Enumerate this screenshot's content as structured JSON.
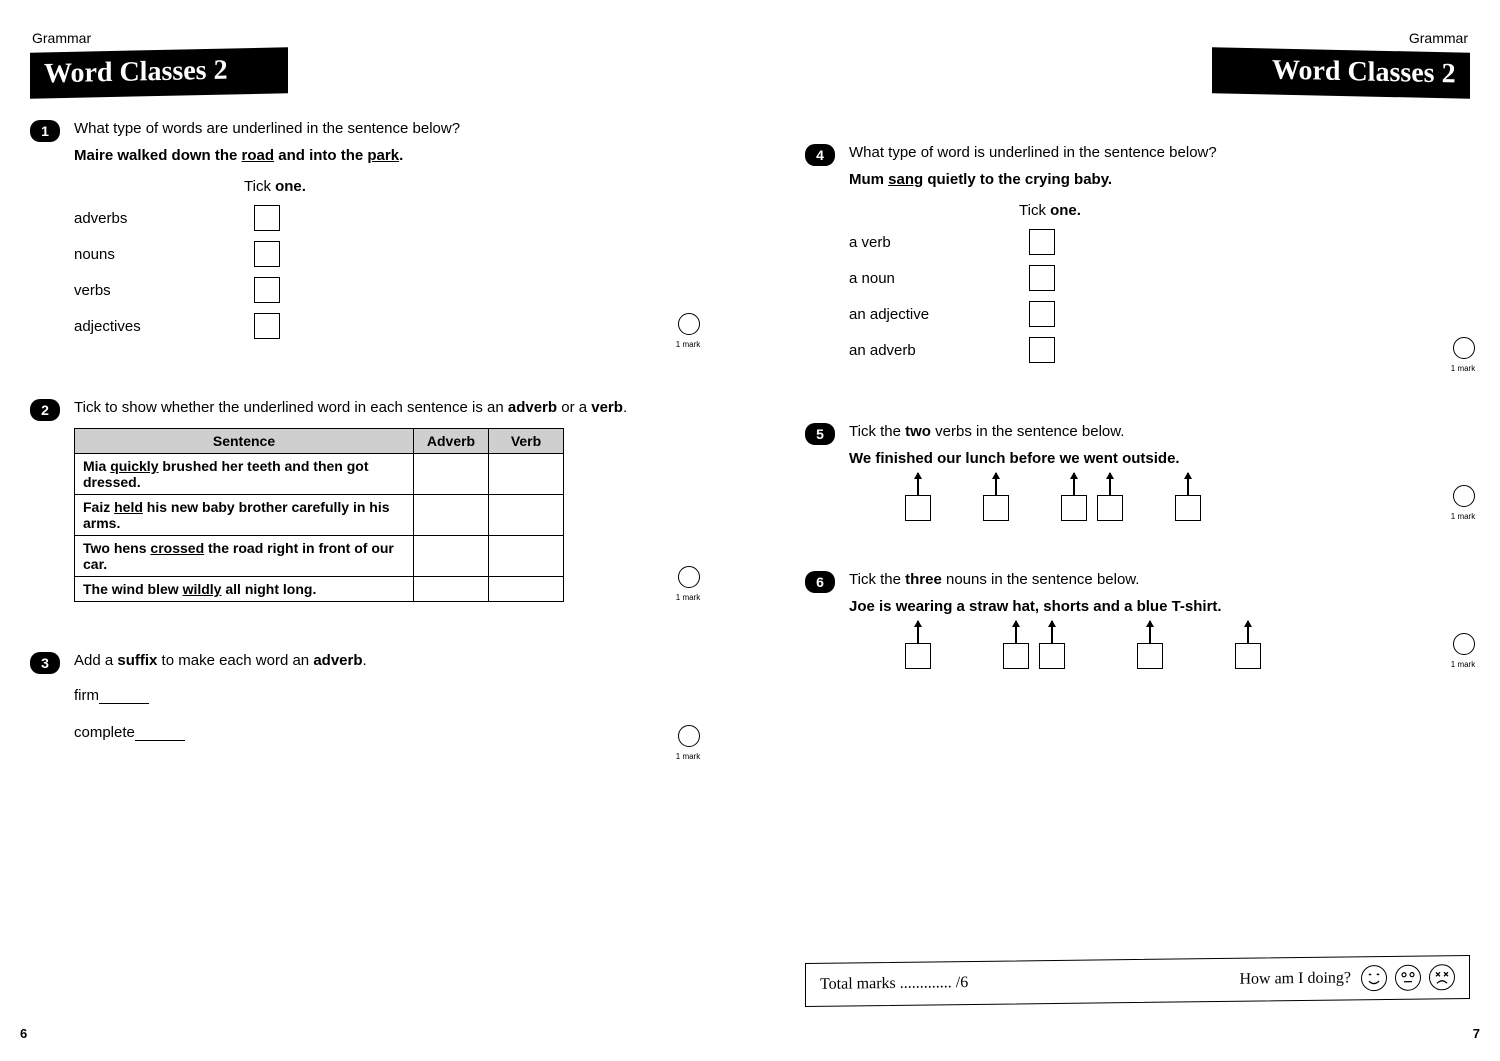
{
  "topic": "Grammar",
  "title": "Word Classes 2",
  "mark_text": "1 mark",
  "tick_one": "Tick <b>one.</b>",
  "page_left_num": "6",
  "page_right_num": "7",
  "q1": {
    "num": "1",
    "stem": "What type of words are underlined in the sentence below?",
    "sentence_html": "Maire walked down the <span class='u'>road</span> and into the <span class='u'>park</span>.",
    "options": [
      "adverbs",
      "nouns",
      "verbs",
      "adjectives"
    ]
  },
  "q2": {
    "num": "2",
    "stem_html": "Tick to show whether the underlined word in each sentence is an <b>adverb</b> or a <b>verb</b>.",
    "cols": [
      "Sentence",
      "Adverb",
      "Verb"
    ],
    "rows_html": [
      "Mia <span class='u'>quickly</span> brushed her teeth and then got dressed.",
      "Faiz <span class='u'>held</span> his new baby brother carefully in his arms.",
      "Two hens <span class='u'>crossed</span> the road right in front of our car.",
      "The wind blew <span class='u'>wildly</span> all night long."
    ]
  },
  "q3": {
    "num": "3",
    "stem_html": "Add a <b>suffix</b> to make each word an <b>adverb</b>.",
    "words": [
      "firm",
      "complete"
    ]
  },
  "q4": {
    "num": "4",
    "stem": "What type of word is underlined in the sentence below?",
    "sentence_html": "Mum <span class='u'>sang</span> quietly to the crying baby.",
    "options": [
      "a verb",
      "a noun",
      "an adjective",
      "an adverb"
    ]
  },
  "q5": {
    "num": "5",
    "stem_html": "Tick the <b>two</b> verbs in the sentence below.",
    "sentence": "We finished our lunch before we went outside.",
    "box_groups": [
      [
        1
      ],
      [
        1
      ],
      [
        1,
        1
      ],
      [
        1
      ]
    ]
  },
  "q6": {
    "num": "6",
    "stem_html": "Tick the <b>three</b> nouns in the sentence below.",
    "sentence": "Joe is wearing a straw hat, shorts and a blue T-shirt.",
    "box_groups": [
      [
        1
      ],
      [
        1,
        1
      ],
      [
        1
      ],
      [
        1
      ]
    ]
  },
  "footer": {
    "total": "Total marks ............. /6",
    "how": "How am I doing?"
  }
}
